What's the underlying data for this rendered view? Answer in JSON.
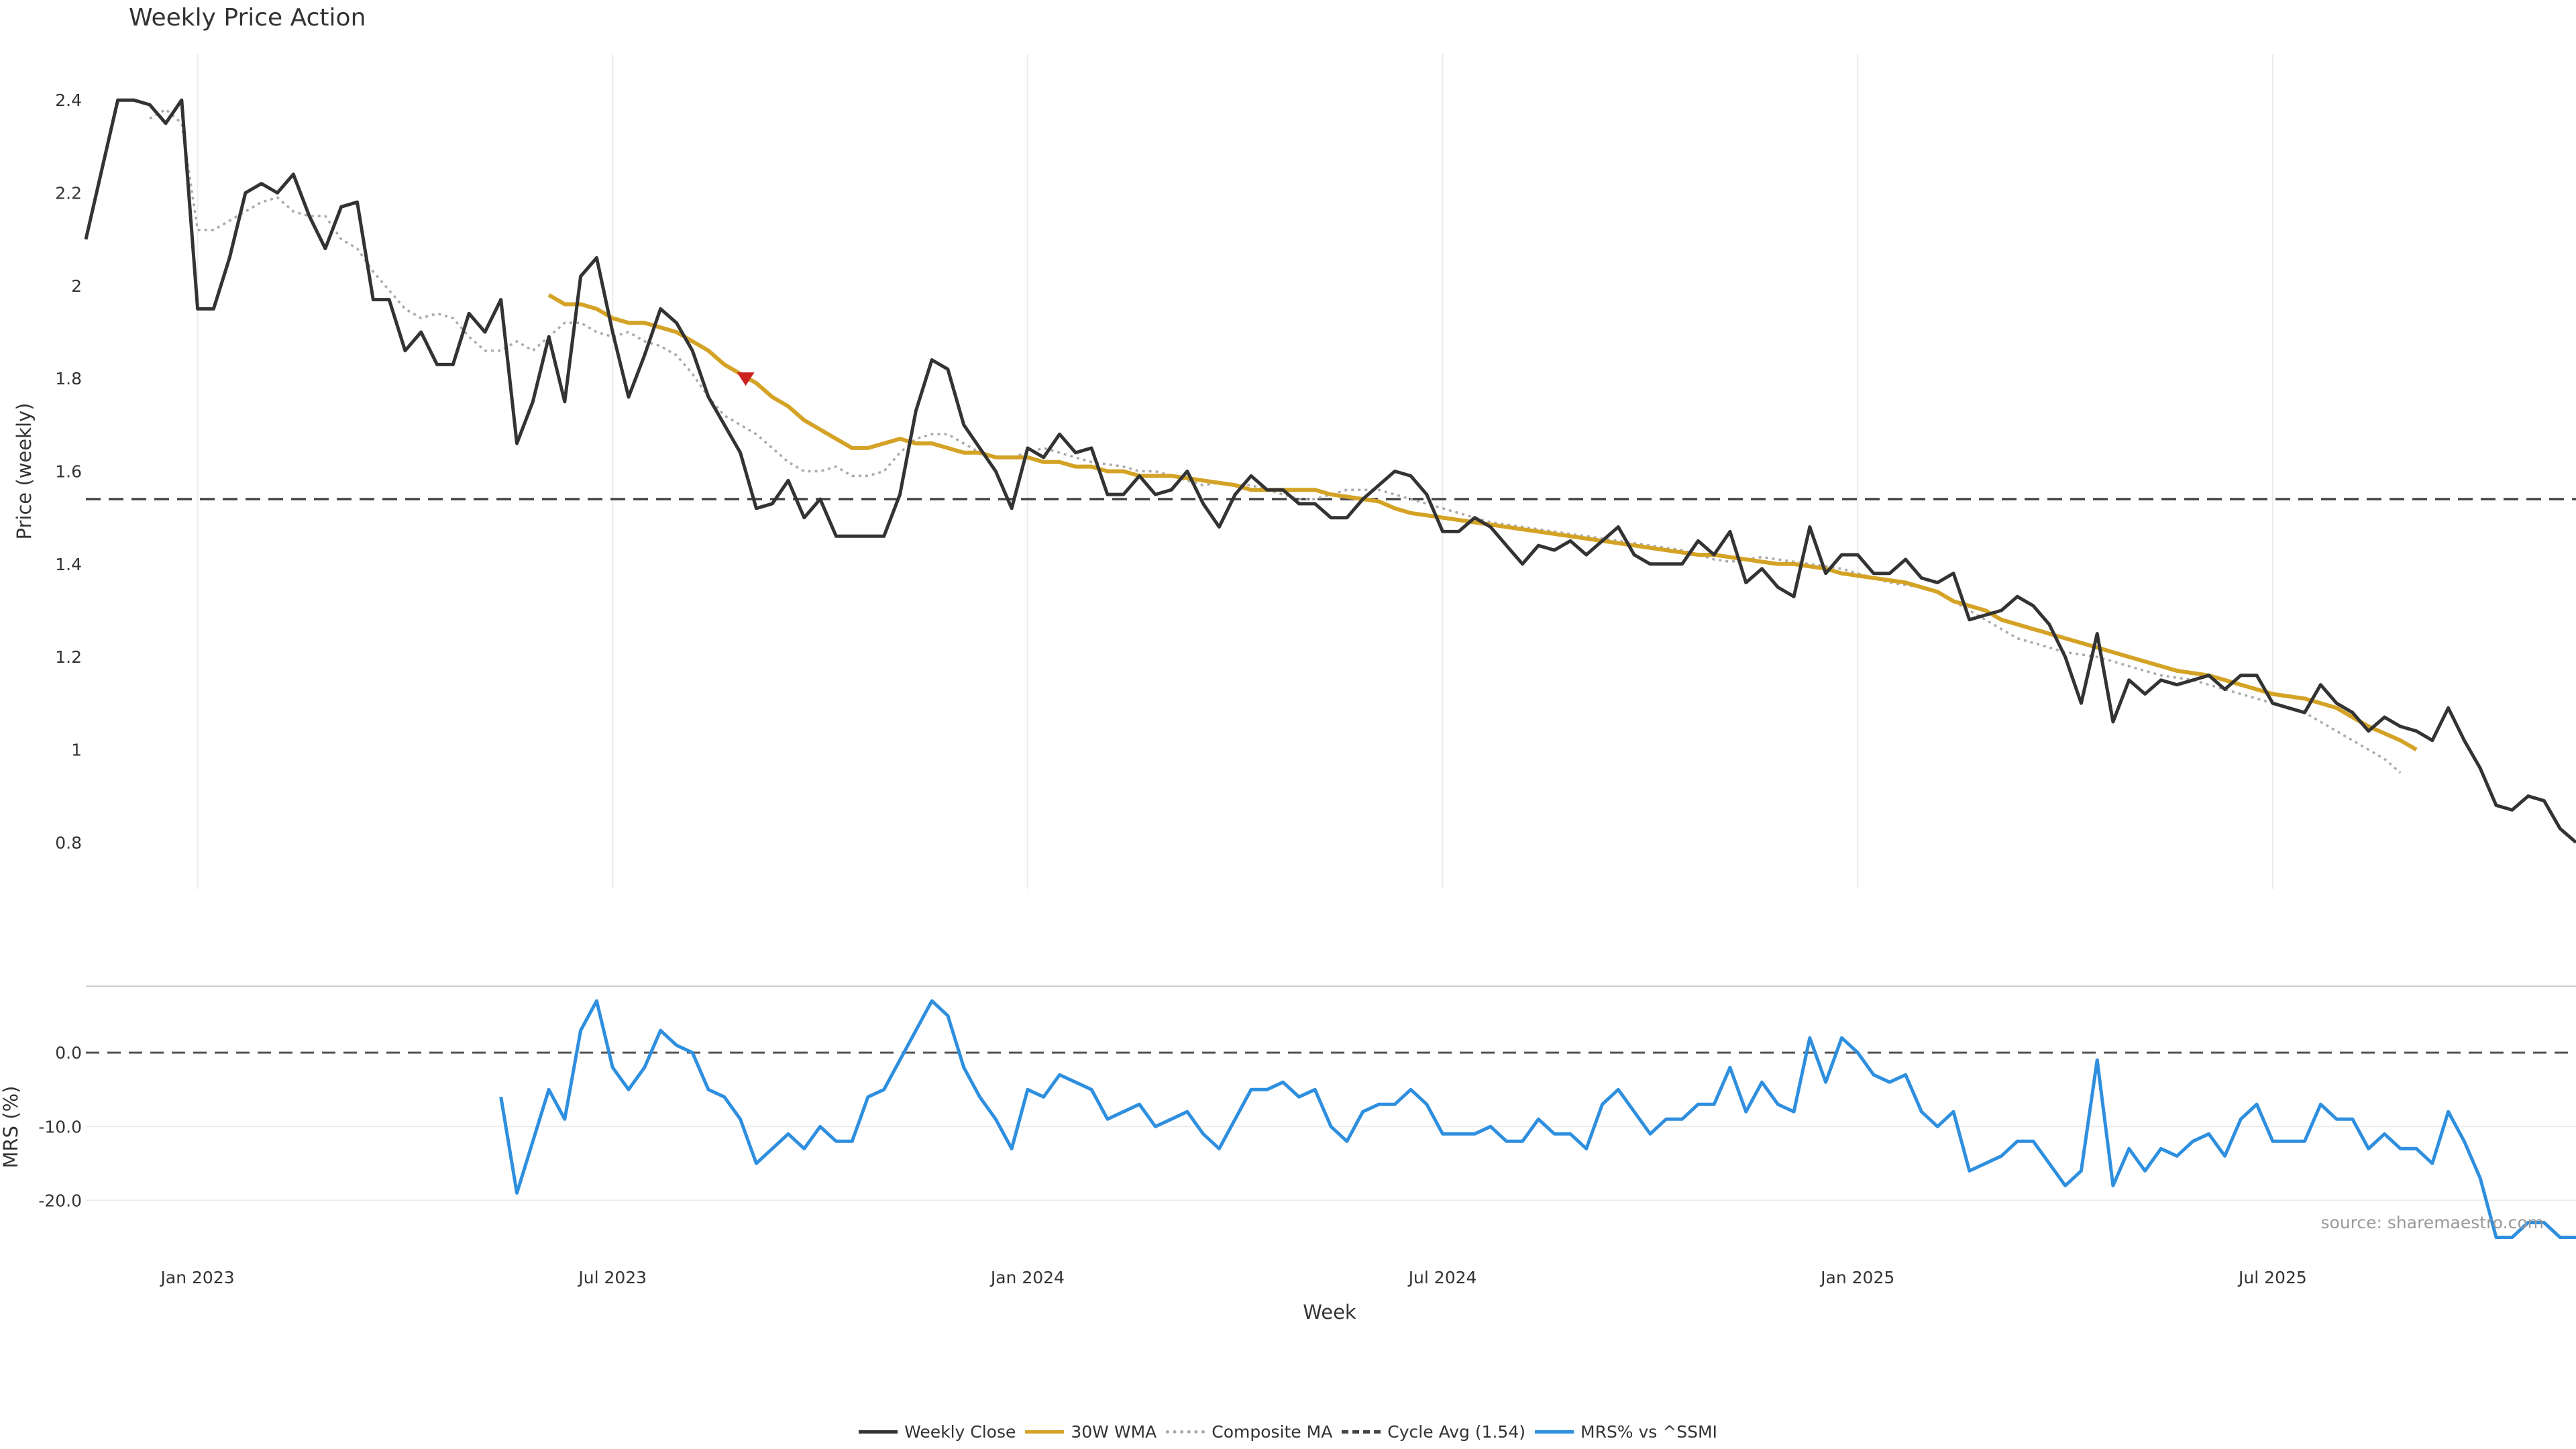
{
  "chart_data": [
    {
      "type": "line",
      "title": "Weekly Price Action",
      "ylabel": "Price (weekly)",
      "xlabel": "",
      "ylim": [
        0.7,
        2.5
      ],
      "yticks": [
        0.8,
        1,
        1.2,
        1.4,
        1.6,
        1.8,
        2,
        2.2,
        2.4
      ],
      "x_tick_labels": [
        "Jan 2023",
        "Jul 2023",
        "Jan 2024",
        "Jul 2024",
        "Jan 2025",
        "Jul 2025"
      ],
      "grid": "vertical",
      "series": [
        {
          "name": "Weekly Close",
          "color": "#333333",
          "style": "solid",
          "values": [
            2.1,
            2.25,
            2.4,
            2.4,
            2.39,
            2.35,
            2.4,
            1.95,
            1.95,
            2.06,
            2.2,
            2.22,
            2.2,
            2.24,
            2.15,
            2.08,
            2.17,
            2.18,
            1.97,
            1.97,
            1.86,
            1.9,
            1.83,
            1.83,
            1.94,
            1.9,
            1.97,
            1.66,
            1.75,
            1.89,
            1.75,
            2.02,
            2.06,
            1.9,
            1.76,
            1.85,
            1.95,
            1.92,
            1.86,
            1.76,
            1.7,
            1.64,
            1.52,
            1.53,
            1.58,
            1.5,
            1.54,
            1.46,
            1.46,
            1.46,
            1.46,
            1.55,
            1.73,
            1.84,
            1.82,
            1.7,
            1.65,
            1.6,
            1.52,
            1.65,
            1.63,
            1.68,
            1.64,
            1.65,
            1.55,
            1.55,
            1.59,
            1.55,
            1.56,
            1.6,
            1.53,
            1.48,
            1.55,
            1.59,
            1.56,
            1.56,
            1.53,
            1.53,
            1.5,
            1.5,
            1.54,
            1.57,
            1.6,
            1.59,
            1.55,
            1.47,
            1.47,
            1.5,
            1.48,
            1.44,
            1.4,
            1.44,
            1.43,
            1.45,
            1.42,
            1.45,
            1.48,
            1.42,
            1.4,
            1.4,
            1.4,
            1.45,
            1.42,
            1.47,
            1.36,
            1.39,
            1.35,
            1.33,
            1.48,
            1.38,
            1.42,
            1.42,
            1.38,
            1.38,
            1.41,
            1.37,
            1.36,
            1.38,
            1.28,
            1.29,
            1.3,
            1.33,
            1.31,
            1.27,
            1.2,
            1.1,
            1.25,
            1.06,
            1.15,
            1.12,
            1.15,
            1.14,
            1.15,
            1.16,
            1.13,
            1.16,
            1.16,
            1.1,
            1.09,
            1.08,
            1.14,
            1.1,
            1.08,
            1.04,
            1.07,
            1.05,
            1.04,
            1.02,
            1.09,
            1.02,
            0.96,
            0.88,
            0.87,
            0.9,
            0.89,
            0.83,
            0.8
          ]
        },
        {
          "name": "30W WMA",
          "color": "#d4a326",
          "style": "solid",
          "start_index": 29,
          "values": [
            1.98,
            1.96,
            1.96,
            1.95,
            1.93,
            1.92,
            1.92,
            1.91,
            1.9,
            1.88,
            1.86,
            1.83,
            1.81,
            1.79,
            1.76,
            1.74,
            1.71,
            1.69,
            1.67,
            1.65,
            1.65,
            1.66,
            1.67,
            1.66,
            1.66,
            1.65,
            1.64,
            1.64,
            1.63,
            1.63,
            1.63,
            1.62,
            1.62,
            1.61,
            1.61,
            1.6,
            1.6,
            1.59,
            1.59,
            1.59,
            1.585,
            1.58,
            1.575,
            1.57,
            1.56,
            1.56,
            1.56,
            1.56,
            1.56,
            1.55,
            1.545,
            1.54,
            1.535,
            1.52,
            1.51,
            1.505,
            1.5,
            1.495,
            1.49,
            1.485,
            1.48,
            1.475,
            1.47,
            1.465,
            1.46,
            1.455,
            1.45,
            1.445,
            1.44,
            1.435,
            1.43,
            1.425,
            1.42,
            1.42,
            1.415,
            1.41,
            1.405,
            1.4,
            1.4,
            1.395,
            1.39,
            1.38,
            1.375,
            1.37,
            1.365,
            1.36,
            1.35,
            1.34,
            1.32,
            1.31,
            1.3,
            1.28,
            1.27,
            1.26,
            1.25,
            1.24,
            1.23,
            1.22,
            1.21,
            1.2,
            1.19,
            1.18,
            1.17,
            1.165,
            1.16,
            1.15,
            1.14,
            1.13,
            1.12,
            1.115,
            1.11,
            1.1,
            1.09,
            1.07,
            1.05,
            1.035,
            1.02,
            1.0
          ]
        },
        {
          "name": "Composite MA",
          "color": "#aaaaaa",
          "style": "dotted",
          "start_index": 4,
          "values": [
            2.36,
            2.38,
            2.35,
            2.12,
            2.12,
            2.14,
            2.16,
            2.18,
            2.19,
            2.16,
            2.15,
            2.15,
            2.1,
            2.08,
            2.03,
            1.99,
            1.95,
            1.93,
            1.94,
            1.93,
            1.89,
            1.86,
            1.86,
            1.88,
            1.86,
            1.89,
            1.92,
            1.92,
            1.9,
            1.89,
            1.9,
            1.88,
            1.87,
            1.85,
            1.81,
            1.76,
            1.72,
            1.7,
            1.68,
            1.65,
            1.62,
            1.6,
            1.6,
            1.61,
            1.59,
            1.59,
            1.6,
            1.64,
            1.67,
            1.68,
            1.68,
            1.66,
            1.64,
            1.63,
            1.63,
            1.64,
            1.65,
            1.64,
            1.63,
            1.62,
            1.615,
            1.61,
            1.6,
            1.6,
            1.59,
            1.58,
            1.57,
            1.575,
            1.57,
            1.57,
            1.56,
            1.55,
            1.54,
            1.54,
            1.55,
            1.56,
            1.56,
            1.56,
            1.55,
            1.54,
            1.53,
            1.52,
            1.51,
            1.5,
            1.49,
            1.485,
            1.48,
            1.475,
            1.47,
            1.465,
            1.46,
            1.455,
            1.45,
            1.445,
            1.44,
            1.435,
            1.43,
            1.42,
            1.41,
            1.405,
            1.41,
            1.415,
            1.41,
            1.405,
            1.4,
            1.395,
            1.39,
            1.38,
            1.37,
            1.36,
            1.355,
            1.35,
            1.34,
            1.32,
            1.3,
            1.28,
            1.26,
            1.24,
            1.23,
            1.22,
            1.21,
            1.205,
            1.2,
            1.19,
            1.18,
            1.17,
            1.16,
            1.155,
            1.15,
            1.14,
            1.13,
            1.12,
            1.11,
            1.1,
            1.09,
            1.08,
            1.06,
            1.04,
            1.02,
            1.0,
            0.98,
            0.95
          ]
        },
        {
          "name": "Cycle Avg (1.54)",
          "color": "#444444",
          "style": "dashed",
          "constant": 1.54
        }
      ],
      "annotations": [
        {
          "type": "down-triangle-marker",
          "index": 41,
          "value": 1.8,
          "color": "#cc2222"
        }
      ]
    },
    {
      "type": "line",
      "title": "",
      "ylabel": "MRS (%)",
      "xlabel": "Week",
      "ylim": [
        -25.5,
        9
      ],
      "ytick_labels": [
        "0.0",
        "-10.0",
        "-20.0"
      ],
      "yticks": [
        0,
        -10,
        -20
      ],
      "reference_line": 0,
      "series": [
        {
          "name": "MRS% vs ^SSMI",
          "color": "#2f8fdf",
          "style": "solid",
          "start_index": 26,
          "values": [
            -6,
            -19,
            -12,
            -5,
            -9,
            3,
            7,
            -2,
            -5,
            -2,
            3,
            1,
            0,
            -5,
            -6,
            -9,
            -15,
            -13,
            -11,
            -13,
            -10,
            -12,
            -12,
            -6,
            -5,
            -1,
            3,
            7,
            5,
            -2,
            -6,
            -9,
            -13,
            -5,
            -6,
            -3,
            -4,
            -5,
            -9,
            -8,
            -7,
            -10,
            -9,
            -8,
            -11,
            -13,
            -9,
            -5,
            -5,
            -4,
            -6,
            -5,
            -10,
            -12,
            -8,
            -7,
            -7,
            -5,
            -7,
            -11,
            -11,
            -11,
            -10,
            -12,
            -12,
            -9,
            -11,
            -11,
            -13,
            -7,
            -5,
            -8,
            -11,
            -9,
            -9,
            -7,
            -7,
            -2,
            -8,
            -4,
            -7,
            -8,
            2,
            -4,
            2,
            0,
            -3,
            -4,
            -3,
            -8,
            -10,
            -8,
            -16,
            -15,
            -14,
            -12,
            -12,
            -15,
            -18,
            -16,
            -1,
            -18,
            -13,
            -16,
            -13,
            -14,
            -12,
            -11,
            -14,
            -9,
            -7,
            -12,
            -12,
            -12,
            -7,
            -9,
            -9,
            -13,
            -11,
            -13,
            -13,
            -15,
            -8,
            -12,
            -17,
            -25,
            -25,
            -23,
            -23,
            -25,
            -25
          ]
        }
      ]
    }
  ],
  "source_note": "source: sharemaestro.com"
}
